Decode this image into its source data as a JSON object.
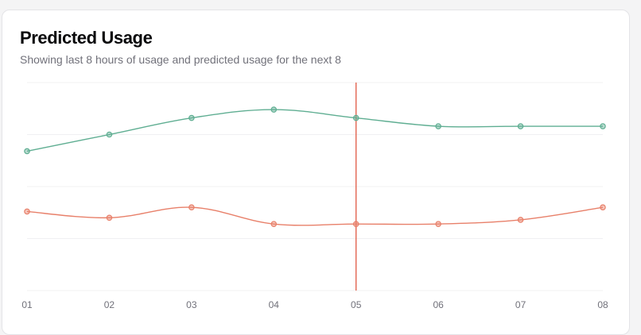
{
  "card": {
    "title": "Predicted Usage",
    "subtitle": "Showing last 8 hours of usage and predicted usage for the next 8"
  },
  "chart_data": {
    "type": "line",
    "categories": [
      "01",
      "02",
      "03",
      "04",
      "05",
      "06",
      "07",
      "08"
    ],
    "ylim": [
      0,
      100
    ],
    "grid": true,
    "legend": "none",
    "series": [
      {
        "values": [
          67,
          75,
          83,
          87,
          83,
          79,
          79,
          79
        ],
        "color": "#5fae92"
      },
      {
        "values": [
          38,
          35,
          40,
          32,
          32,
          32,
          34,
          40
        ],
        "color": "#e8806a"
      }
    ],
    "marker": {
      "category": "05",
      "color": "#e05a44"
    }
  }
}
